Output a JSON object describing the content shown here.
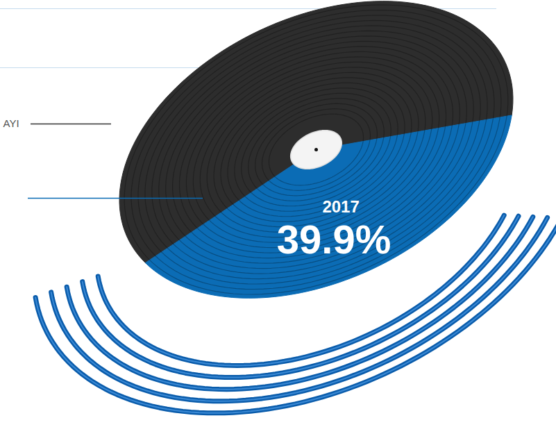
{
  "chart_data": {
    "type": "pie",
    "categories": [
      "AYI",
      "2017"
    ],
    "values": [
      60.1,
      39.9
    ],
    "value_labels": [
      null,
      "39.9%"
    ],
    "colors": [
      "#2d2d2d",
      "#0b6cb5"
    ],
    "data_labels": true
  }
}
